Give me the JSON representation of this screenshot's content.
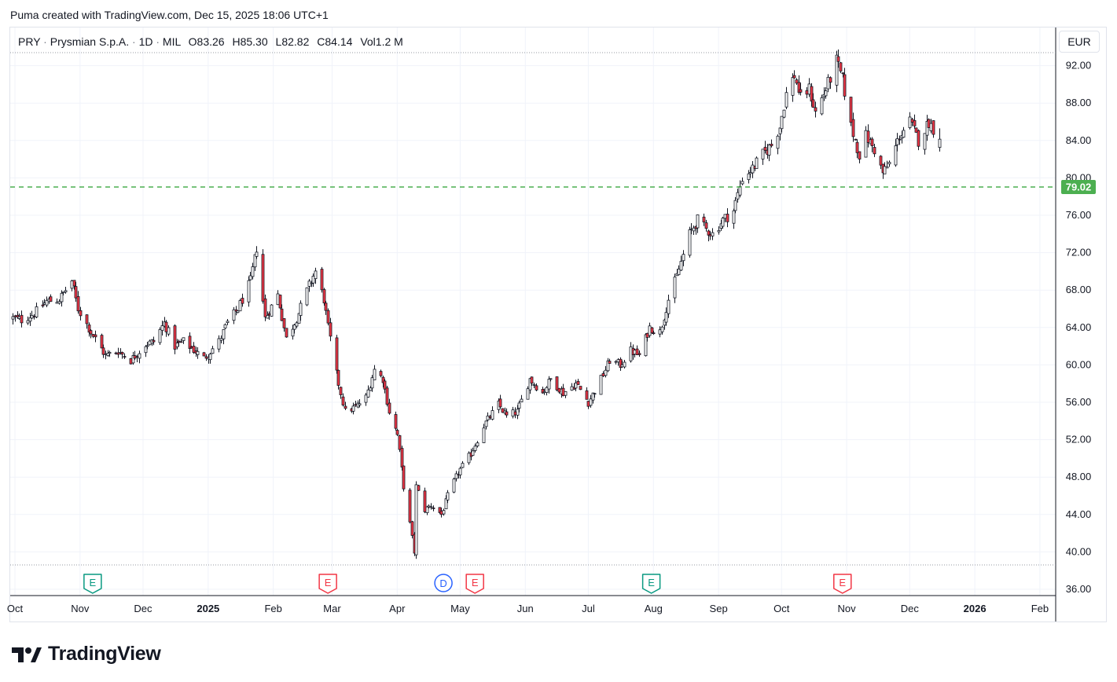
{
  "header": {
    "caption": "Puma created with TradingView.com, Dec 15, 2025 18:06 UTC+1"
  },
  "legend": {
    "symbol": "PRY",
    "name": "Prysmian S.p.A.",
    "interval": "1D",
    "exchange": "MIL",
    "open_label": "O",
    "open": "83.26",
    "high_label": "H",
    "high": "85.30",
    "low_label": "L",
    "low": "82.82",
    "close_label": "C",
    "close": "84.14",
    "volume_label": "Vol",
    "volume": "1.2 M"
  },
  "currency": "EUR",
  "colors": {
    "up": "#089981",
    "down": "#f23645",
    "candle_body_up": "#ffffff",
    "candle_body_down": "#f23645",
    "level_line": "#4caf50",
    "grid": "#f0f3fa",
    "event_earnings_past": "#089981",
    "event_earnings_future": "#f23645",
    "event_dividend": "#2962ff"
  },
  "logo": {
    "text": "TradingView",
    "icon": "tradingview-logo-icon"
  },
  "chart_data": {
    "type": "candlestick",
    "interval": "daily",
    "y_axis": {
      "range": [
        36,
        94
      ],
      "ticks": [
        "36.00",
        "40.00",
        "44.00",
        "48.00",
        "52.00",
        "56.00",
        "60.00",
        "64.00",
        "68.00",
        "72.00",
        "76.00",
        "80.00",
        "84.00",
        "88.00",
        "92.00"
      ],
      "position": "right"
    },
    "x_axis": {
      "ticks": [
        {
          "label": "Oct",
          "bold": false,
          "date": "2024-10-01"
        },
        {
          "label": "Nov",
          "bold": false,
          "date": "2024-11-01"
        },
        {
          "label": "Dec",
          "bold": false,
          "date": "2024-12-01"
        },
        {
          "label": "2025",
          "bold": true,
          "date": "2025-01-01"
        },
        {
          "label": "Feb",
          "bold": false,
          "date": "2025-02-01"
        },
        {
          "label": "Mar",
          "bold": false,
          "date": "2025-03-01"
        },
        {
          "label": "Apr",
          "bold": false,
          "date": "2025-04-01"
        },
        {
          "label": "May",
          "bold": false,
          "date": "2025-05-01"
        },
        {
          "label": "Jun",
          "bold": false,
          "date": "2025-06-01"
        },
        {
          "label": "Jul",
          "bold": false,
          "date": "2025-07-01"
        },
        {
          "label": "Aug",
          "bold": false,
          "date": "2025-08-01"
        },
        {
          "label": "Sep",
          "bold": false,
          "date": "2025-09-01"
        },
        {
          "label": "Oct",
          "bold": false,
          "date": "2025-10-01"
        },
        {
          "label": "Nov",
          "bold": false,
          "date": "2025-11-01"
        },
        {
          "label": "Dec",
          "bold": false,
          "date": "2025-12-01"
        },
        {
          "label": "2026",
          "bold": true,
          "date": "2026-01-01"
        },
        {
          "label": "Feb",
          "bold": false,
          "date": "2026-02-01"
        }
      ],
      "range": [
        "2024-09-30",
        "2026-02-20"
      ]
    },
    "horizontal_level": {
      "value": 79.02,
      "label": "79.02",
      "style": "dashed"
    },
    "range_lines": [
      93.4,
      38.6
    ],
    "events": [
      {
        "type": "earnings",
        "label": "E",
        "date": "2024-11-07",
        "status": "past"
      },
      {
        "type": "earnings",
        "label": "E",
        "date": "2025-02-27",
        "status": "future"
      },
      {
        "type": "dividend",
        "label": "D",
        "date": "2025-04-23",
        "status": "dividend"
      },
      {
        "type": "earnings",
        "label": "E",
        "date": "2025-05-08",
        "status": "future"
      },
      {
        "type": "earnings",
        "label": "E",
        "date": "2025-07-31",
        "status": "past"
      },
      {
        "type": "earnings",
        "label": "E",
        "date": "2025-10-30",
        "status": "future"
      }
    ],
    "anchors": [
      [
        "2024-09-30",
        65.0
      ],
      [
        "2024-10-04",
        64.8
      ],
      [
        "2024-10-10",
        65.5
      ],
      [
        "2024-10-16",
        66.8
      ],
      [
        "2024-10-22",
        67.0
      ],
      [
        "2024-10-28",
        69.0
      ],
      [
        "2024-10-31",
        66.0
      ],
      [
        "2024-11-06",
        63.5
      ],
      [
        "2024-11-13",
        61.0
      ],
      [
        "2024-11-19",
        61.5
      ],
      [
        "2024-11-25",
        60.5
      ],
      [
        "2024-12-02",
        62.2
      ],
      [
        "2024-12-06",
        62.5
      ],
      [
        "2024-12-11",
        64.5
      ],
      [
        "2024-12-16",
        62.0
      ],
      [
        "2024-12-20",
        62.5
      ],
      [
        "2024-12-30",
        60.7
      ],
      [
        "2025-01-06",
        62.5
      ],
      [
        "2025-01-10",
        64.5
      ],
      [
        "2025-01-15",
        66.0
      ],
      [
        "2025-01-21",
        69.0
      ],
      [
        "2025-01-24",
        72.5
      ],
      [
        "2025-01-28",
        65.0
      ],
      [
        "2025-02-03",
        67.5
      ],
      [
        "2025-02-07",
        62.8
      ],
      [
        "2025-02-12",
        65.0
      ],
      [
        "2025-02-18",
        68.5
      ],
      [
        "2025-02-21",
        70.0
      ],
      [
        "2025-02-25",
        67.0
      ],
      [
        "2025-02-27",
        64.0
      ],
      [
        "2025-03-03",
        59.0
      ],
      [
        "2025-03-07",
        55.0
      ],
      [
        "2025-03-12",
        55.5
      ],
      [
        "2025-03-17",
        56.5
      ],
      [
        "2025-03-21",
        59.5
      ],
      [
        "2025-03-25",
        58.5
      ],
      [
        "2025-03-28",
        55.0
      ],
      [
        "2025-04-01",
        52.5
      ],
      [
        "2025-04-04",
        47.0
      ],
      [
        "2025-04-07",
        43.0
      ],
      [
        "2025-04-09",
        40.0
      ],
      [
        "2025-04-10",
        47.0
      ],
      [
        "2025-04-14",
        44.5
      ],
      [
        "2025-04-17",
        45.0
      ],
      [
        "2025-04-22",
        44.0
      ],
      [
        "2025-04-25",
        46.0
      ],
      [
        "2025-04-30",
        48.5
      ],
      [
        "2025-05-06",
        50.5
      ],
      [
        "2025-05-12",
        53.5
      ],
      [
        "2025-05-19",
        55.8
      ],
      [
        "2025-05-23",
        54.5
      ],
      [
        "2025-05-28",
        55.0
      ],
      [
        "2025-06-03",
        58.5
      ],
      [
        "2025-06-09",
        57.0
      ],
      [
        "2025-06-13",
        58.5
      ],
      [
        "2025-06-19",
        57.0
      ],
      [
        "2025-06-25",
        58.0
      ],
      [
        "2025-07-01",
        56.0
      ],
      [
        "2025-07-07",
        58.5
      ],
      [
        "2025-07-11",
        60.5
      ],
      [
        "2025-07-16",
        60.0
      ],
      [
        "2025-07-21",
        61.5
      ],
      [
        "2025-07-25",
        61.0
      ],
      [
        "2025-07-30",
        64.0
      ],
      [
        "2025-08-04",
        63.5
      ],
      [
        "2025-08-08",
        67.0
      ],
      [
        "2025-08-12",
        69.5
      ],
      [
        "2025-08-18",
        74.0
      ],
      [
        "2025-08-22",
        75.5
      ],
      [
        "2025-08-26",
        74.5
      ],
      [
        "2025-08-29",
        74.0
      ],
      [
        "2025-09-03",
        75.5
      ],
      [
        "2025-09-08",
        76.5
      ],
      [
        "2025-09-12",
        80.0
      ],
      [
        "2025-09-17",
        81.0
      ],
      [
        "2025-09-22",
        82.5
      ],
      [
        "2025-09-26",
        83.5
      ],
      [
        "2025-09-30",
        85.5
      ],
      [
        "2025-10-03",
        89.0
      ],
      [
        "2025-10-07",
        91.0
      ],
      [
        "2025-10-10",
        88.5
      ],
      [
        "2025-10-14",
        89.5
      ],
      [
        "2025-10-17",
        87.0
      ],
      [
        "2025-10-22",
        89.5
      ],
      [
        "2025-10-27",
        92.5
      ],
      [
        "2025-10-30",
        90.5
      ],
      [
        "2025-11-03",
        85.5
      ],
      [
        "2025-11-07",
        82.5
      ],
      [
        "2025-11-10",
        84.5
      ],
      [
        "2025-11-14",
        83.0
      ],
      [
        "2025-11-18",
        80.5
      ],
      [
        "2025-11-21",
        81.5
      ],
      [
        "2025-11-26",
        84.5
      ],
      [
        "2025-12-01",
        86.0
      ],
      [
        "2025-12-05",
        84.0
      ],
      [
        "2025-12-10",
        86.0
      ],
      [
        "2025-12-15",
        84.14
      ]
    ],
    "last_candle": {
      "open": 83.26,
      "high": 85.3,
      "low": 82.82,
      "close": 84.14
    }
  }
}
